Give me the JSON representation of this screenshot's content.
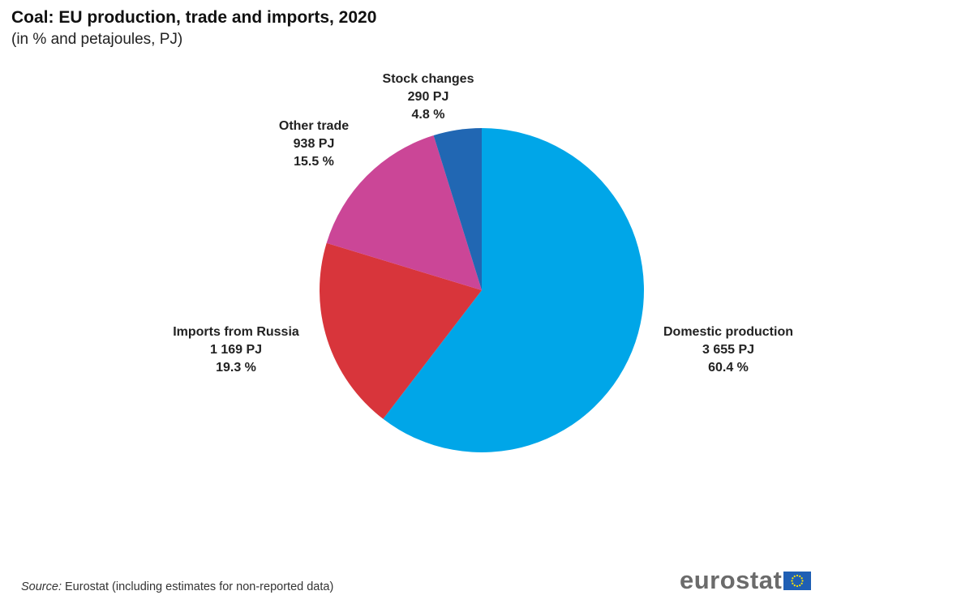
{
  "chart_data": {
    "type": "pie",
    "title": "Coal: EU production, trade and imports, 2020",
    "subtitle": "(in % and petajoules, PJ)",
    "slices": [
      {
        "name": "Domestic production",
        "value_pj": "3 655 PJ",
        "percent": 60.4,
        "percent_label": "60.4 %",
        "color": "#00a6e8"
      },
      {
        "name": "Imports from Russia",
        "value_pj": "1 169 PJ",
        "percent": 19.3,
        "percent_label": "19.3 %",
        "color": "#d8353b"
      },
      {
        "name": "Other trade",
        "value_pj": "938 PJ",
        "percent": 15.5,
        "percent_label": "15.5 %",
        "color": "#cb4697"
      },
      {
        "name": "Stock changes",
        "value_pj": "290 PJ",
        "percent": 4.8,
        "percent_label": "4.8 %",
        "color": "#2167b3"
      }
    ]
  },
  "footer": {
    "source_prefix": "Source:",
    "source_text": "Eurostat (including  estimates for non-reported data)",
    "brand": "eurostat"
  },
  "colors": {
    "brand_text": "#6b6b6b",
    "eu_flag_blue": "#1f5fb4",
    "eu_flag_star": "#ffe600"
  }
}
